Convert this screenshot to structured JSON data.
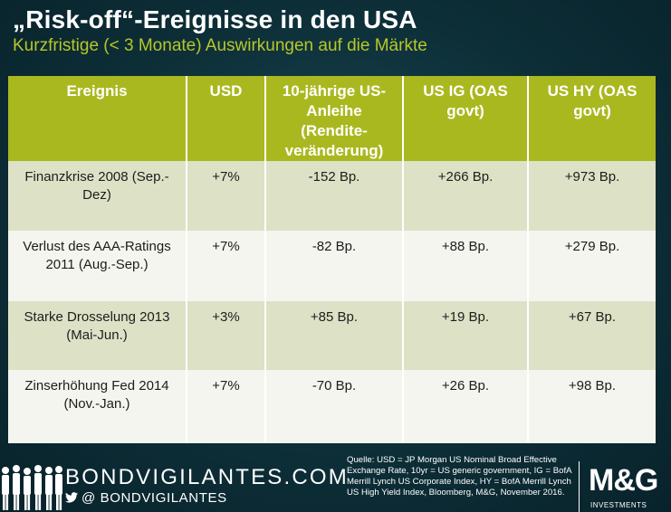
{
  "title": "„Risk-off“-Ereignisse in den USA",
  "subtitle": "Kurzfristige (< 3 Monate) Auswirkungen auf die Märkte",
  "table": {
    "headers": [
      "Ereignis",
      "USD",
      "10-jährige US-Anleihe (Rendite-veränderung)",
      "US IG (OAS govt)",
      "US HY (OAS govt)"
    ],
    "rows": [
      [
        "Finanzkrise 2008 (Sep.-Dez)",
        "+7%",
        "-152 Bp.",
        "+266 Bp.",
        "+973 Bp."
      ],
      [
        "Verlust des AAA-Ratings 2011 (Aug.-Sep.)",
        "+7%",
        "-82 Bp.",
        "+88 Bp.",
        "+279 Bp."
      ],
      [
        "Starke Drosselung 2013 (Mai-Jun.)",
        "+3%",
        "+85 Bp.",
        "+19 Bp.",
        "+67 Bp."
      ],
      [
        "Zinserhöhung Fed 2014 (Nov.-Jan.)",
        "+7%",
        "-70 Bp.",
        "+26 Bp.",
        "+98 Bp."
      ]
    ]
  },
  "footer": {
    "brand": "BONDVIGILANTES.COM",
    "handle": "@ BONDVIGILANTES",
    "source": "Quelle: USD = JP Morgan US Nominal Broad Effective Exchange Rate, 10yr = US generic government, IG = BofA Merrill Lynch US Corporate Index, HY = BofA Merrill Lynch US High Yield Index, Bloomberg, M&G, November 2016.",
    "logo_text": "M&G",
    "logo_sub": "INVESTMENTS"
  },
  "colors": {
    "accent": "#aab81f",
    "background": "#0d2f38",
    "row_alt": "#dde2c6",
    "row_light": "#f4f5ee"
  }
}
